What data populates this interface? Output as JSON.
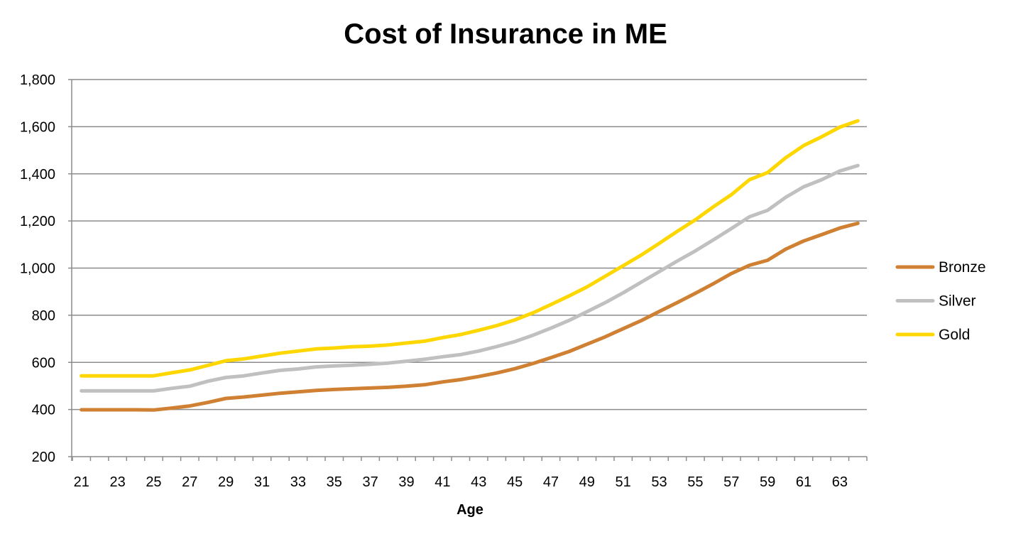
{
  "chart_data": {
    "type": "line",
    "title": "Cost of Insurance in ME",
    "xlabel": "Age",
    "ylabel": "",
    "ylim": [
      200,
      1800
    ],
    "yticks": [
      "200",
      "400",
      "600",
      "800",
      "1,000",
      "1,200",
      "1,400",
      "1,600",
      "1,800"
    ],
    "ytick_values": [
      200,
      400,
      600,
      800,
      1000,
      1200,
      1400,
      1600,
      1800
    ],
    "grid": true,
    "legend": "right",
    "x": [
      21,
      22,
      23,
      24,
      25,
      26,
      27,
      28,
      29,
      30,
      31,
      32,
      33,
      34,
      35,
      36,
      37,
      38,
      39,
      40,
      41,
      42,
      43,
      44,
      45,
      46,
      47,
      48,
      49,
      50,
      51,
      52,
      53,
      54,
      55,
      56,
      57,
      58,
      59,
      60,
      61,
      62,
      63,
      64
    ],
    "xtick_labels": [
      "21",
      "23",
      "25",
      "27",
      "29",
      "31",
      "33",
      "35",
      "37",
      "39",
      "41",
      "43",
      "45",
      "47",
      "49",
      "51",
      "53",
      "55",
      "57",
      "59",
      "61",
      "63"
    ],
    "series": [
      {
        "name": "Bronze",
        "color": "#D08032",
        "values": [
          399,
          399,
          399,
          399,
          398,
          406,
          415,
          430,
          447,
          453,
          461,
          469,
          475,
          481,
          485,
          488,
          491,
          494,
          499,
          505,
          517,
          527,
          540,
          555,
          573,
          595,
          620,
          646,
          677,
          708,
          743,
          777,
          816,
          854,
          893,
          934,
          977,
          1012,
          1033,
          1080,
          1115,
          1142,
          1170,
          1190
        ]
      },
      {
        "name": "Silver",
        "color": "#C0C0C0",
        "values": [
          479,
          479,
          479,
          479,
          479,
          490,
          499,
          520,
          536,
          543,
          555,
          566,
          572,
          581,
          585,
          588,
          592,
          597,
          605,
          613,
          624,
          633,
          648,
          667,
          688,
          715,
          745,
          778,
          815,
          853,
          895,
          940,
          985,
          1030,
          1073,
          1120,
          1168,
          1218,
          1245,
          1300,
          1345,
          1375,
          1412,
          1435
        ]
      },
      {
        "name": "Gold",
        "color": "#FFD700",
        "values": [
          543,
          543,
          543,
          543,
          543,
          556,
          568,
          587,
          607,
          615,
          627,
          639,
          648,
          657,
          661,
          666,
          669,
          674,
          682,
          690,
          705,
          718,
          736,
          756,
          780,
          810,
          845,
          882,
          920,
          965,
          1010,
          1055,
          1105,
          1156,
          1205,
          1260,
          1312,
          1375,
          1405,
          1468,
          1520,
          1557,
          1598,
          1625
        ]
      }
    ]
  }
}
